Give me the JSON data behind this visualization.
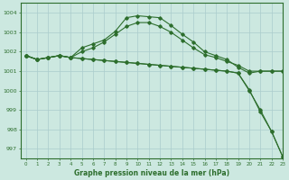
{
  "background_color": "#cce8e0",
  "grid_color": "#aacccc",
  "line_color": "#2d6e2d",
  "title": "Graphe pression niveau de la mer (hPa)",
  "xlim": [
    -0.5,
    23
  ],
  "ylim": [
    996.5,
    1004.5
  ],
  "yticks": [
    997,
    998,
    999,
    1000,
    1001,
    1002,
    1003,
    1004
  ],
  "xticks": [
    0,
    1,
    2,
    3,
    4,
    5,
    6,
    7,
    8,
    9,
    10,
    11,
    12,
    13,
    14,
    15,
    16,
    17,
    18,
    19,
    20,
    21,
    22,
    23
  ],
  "s1": [
    1001.8,
    1001.6,
    1001.7,
    1001.8,
    1001.7,
    1001.65,
    1001.6,
    1001.55,
    1001.5,
    1001.45,
    1001.4,
    1001.35,
    1001.3,
    1001.25,
    1001.2,
    1001.15,
    1001.1,
    1001.05,
    1001.0,
    1000.9,
    1000.0,
    999.0,
    997.9,
    996.6
  ],
  "s2": [
    1001.8,
    1001.6,
    1001.7,
    1001.8,
    1001.7,
    1002.0,
    1002.2,
    1002.5,
    1002.9,
    1003.3,
    1003.5,
    1003.5,
    1003.3,
    1003.0,
    1002.6,
    1002.2,
    1001.85,
    1001.7,
    1001.5,
    1001.3,
    1001.0,
    1001.0,
    1001.0,
    1001.0
  ],
  "s3": [
    1001.8,
    1001.6,
    1001.7,
    1001.8,
    1001.7,
    1001.65,
    1001.6,
    1001.55,
    1001.5,
    1001.45,
    1001.4,
    1001.35,
    1001.3,
    1001.25,
    1001.2,
    1001.15,
    1001.1,
    1001.05,
    1001.0,
    1000.9,
    1000.05,
    998.9,
    997.9,
    996.6
  ],
  "s4": [
    1001.8,
    1001.6,
    1001.7,
    1001.8,
    1001.7,
    1002.2,
    1002.4,
    1002.6,
    1003.05,
    1003.75,
    1003.85,
    1003.8,
    1003.75,
    1003.35,
    1002.9,
    1002.5,
    1002.0,
    1001.8,
    1001.6,
    1001.2,
    1000.9,
    1001.0,
    1001.0,
    1001.0
  ]
}
